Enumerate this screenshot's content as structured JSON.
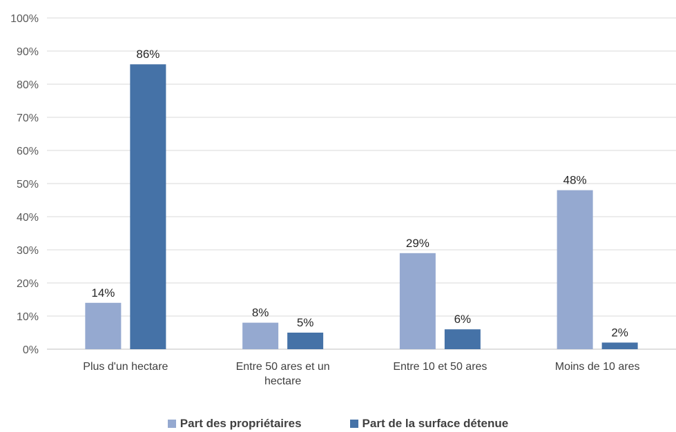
{
  "chart_data": {
    "type": "bar",
    "categories": [
      "Plus d'un hectare",
      "Entre 50 ares et un hectare",
      "Entre 10 et 50 ares",
      "Moins de 10 ares"
    ],
    "series": [
      {
        "name": "Part des propriétaires",
        "values": [
          14,
          8,
          29,
          48
        ],
        "labels": [
          "14%",
          "8%",
          "29%",
          "48%"
        ],
        "color": "#95a9d0"
      },
      {
        "name": "Part de la surface détenue",
        "values": [
          86,
          5,
          6,
          2
        ],
        "labels": [
          "86%",
          "5%",
          "6%",
          "2%"
        ],
        "color": "#4572a7"
      }
    ],
    "yticks": [
      "0%",
      "10%",
      "20%",
      "30%",
      "40%",
      "50%",
      "60%",
      "70%",
      "80%",
      "90%",
      "100%"
    ],
    "ylim": [
      0,
      100
    ],
    "grid": true,
    "legend_position": "bottom"
  }
}
